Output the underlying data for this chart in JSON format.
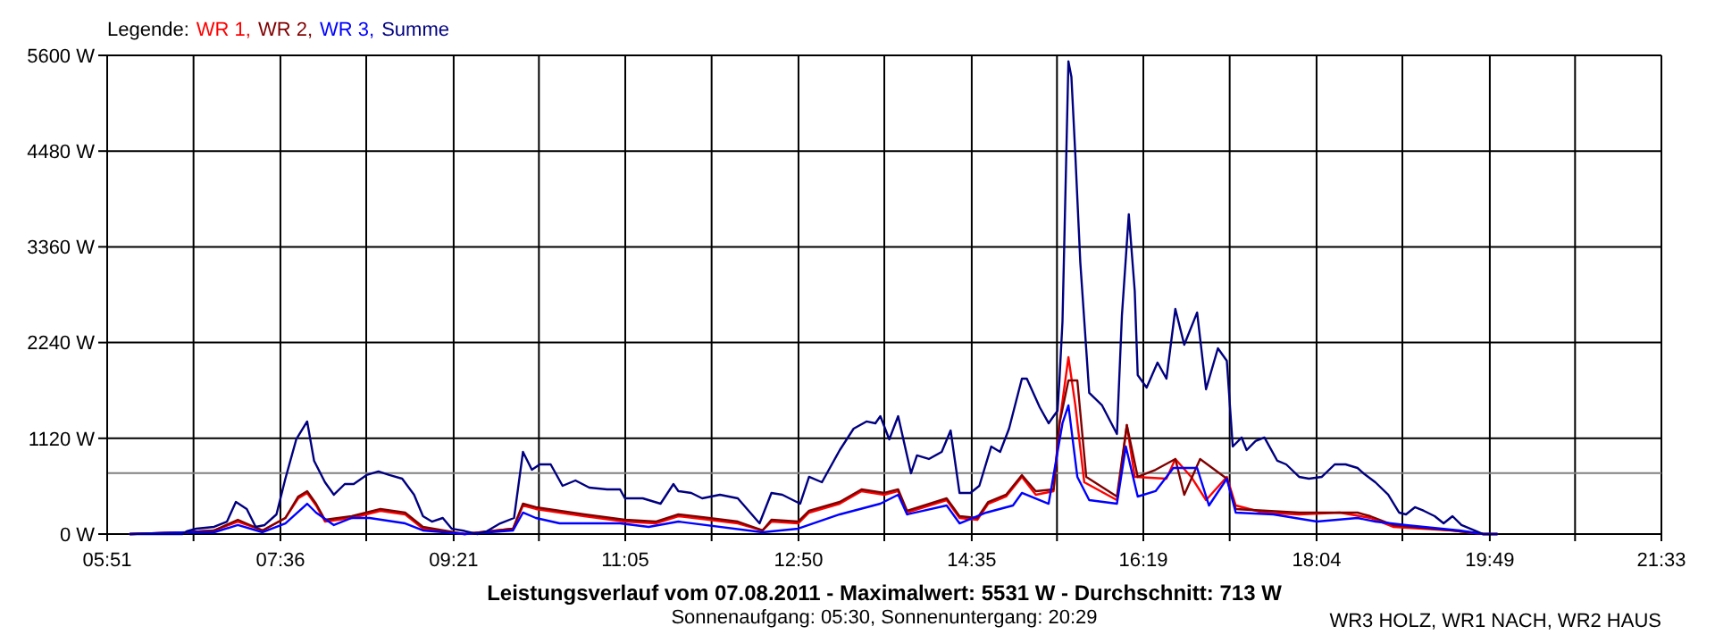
{
  "chart_data": {
    "type": "line",
    "title": "Leistungsverlauf vom 07.08.2011 - Maximalwert: 5531 W - Durchschnitt: 713 W",
    "subtitle": "Sonnenaufgang: 05:30, Sonnenuntergang: 20:29",
    "annotations": [
      "WR3 HOLZ, WR1 NACH, WR2 HAUS"
    ],
    "legend_title": "Legende:",
    "legend": "top left",
    "grid": true,
    "line_style": "solid",
    "xlim": [
      5.85,
      21.55
    ],
    "xticks": [
      {
        "value": 5.85,
        "label": "05:51"
      },
      {
        "value": 6.7222,
        "label": null
      },
      {
        "value": 7.6,
        "label": "07:36"
      },
      {
        "value": 8.4667,
        "label": null
      },
      {
        "value": 9.35,
        "label": "09:21"
      },
      {
        "value": 10.2111,
        "label": null
      },
      {
        "value": 11.0833,
        "label": "11:05"
      },
      {
        "value": 11.9556,
        "label": null
      },
      {
        "value": 12.8333,
        "label": "12:50"
      },
      {
        "value": 13.7,
        "label": null
      },
      {
        "value": 14.5833,
        "label": "14:35"
      },
      {
        "value": 15.4444,
        "label": null
      },
      {
        "value": 16.3167,
        "label": "16:19"
      },
      {
        "value": 17.1889,
        "label": null
      },
      {
        "value": 18.0667,
        "label": "18:04"
      },
      {
        "value": 18.9333,
        "label": null
      },
      {
        "value": 19.8167,
        "label": "19:49"
      },
      {
        "value": 20.6778,
        "label": null
      },
      {
        "value": 21.55,
        "label": "21:33"
      }
    ],
    "ylim": [
      0,
      5600
    ],
    "yticks": [
      {
        "value": 0,
        "label": "0 W"
      },
      {
        "value": 1120,
        "label": "1120 W"
      },
      {
        "value": 2240,
        "label": "2240 W"
      },
      {
        "value": 3360,
        "label": "3360 W"
      },
      {
        "value": 4480,
        "label": "4480 W"
      },
      {
        "value": 5600,
        "label": "5600 W"
      }
    ],
    "ref_lines": [
      {
        "axis": "y",
        "value": 713,
        "color": "#808080"
      }
    ],
    "series": [
      {
        "name": "WR 1,",
        "color": "#ff0000",
        "x": [
          6.08,
          6.66,
          6.93,
          7.17,
          7.42,
          7.65,
          7.78,
          7.87,
          7.96,
          8.05,
          8.32,
          8.61,
          8.86,
          9.04,
          9.46,
          9.95,
          10.05,
          10.18,
          10.67,
          11.08,
          11.39,
          11.62,
          11.93,
          12.22,
          12.47,
          12.56,
          12.83,
          12.94,
          13.25,
          13.47,
          13.7,
          13.84,
          13.93,
          14.33,
          14.46,
          14.64,
          14.75,
          14.93,
          15.09,
          15.23,
          15.41,
          15.47,
          15.56,
          15.63,
          15.72,
          16.05,
          16.1,
          16.15,
          16.23,
          16.55,
          16.64,
          16.8,
          16.95,
          17.16,
          17.25,
          17.53,
          17.89,
          18.3,
          18.61,
          18.84,
          19.44,
          19.75,
          19.89
        ],
        "values": [
          0,
          21,
          42,
          146,
          42,
          188,
          418,
          481,
          334,
          146,
          188,
          272,
          230,
          63,
          0,
          63,
          334,
          293,
          209,
          146,
          125,
          209,
          167,
          125,
          42,
          146,
          125,
          251,
          355,
          502,
          460,
          502,
          251,
          397,
          188,
          167,
          355,
          439,
          669,
          460,
          502,
          1296,
          2069,
          1505,
          606,
          397,
          818,
          1275,
          669,
          648,
          878,
          669,
          397,
          669,
          334,
          251,
          230,
          251,
          188,
          84,
          42,
          0,
          0
        ]
      },
      {
        "name": "WR 2,",
        "color": "#800000",
        "x": [
          6.08,
          6.66,
          6.93,
          7.17,
          7.42,
          7.65,
          7.78,
          7.87,
          7.96,
          8.05,
          8.32,
          8.61,
          8.86,
          9.04,
          9.46,
          9.95,
          10.05,
          10.18,
          10.67,
          11.08,
          11.39,
          11.62,
          11.93,
          12.22,
          12.47,
          12.56,
          12.83,
          12.94,
          13.25,
          13.47,
          13.7,
          13.84,
          13.93,
          14.33,
          14.46,
          14.64,
          14.75,
          14.93,
          15.09,
          15.23,
          15.41,
          15.47,
          15.56,
          15.65,
          15.74,
          16.05,
          16.15,
          16.26,
          16.44,
          16.64,
          16.73,
          16.89,
          17.16,
          17.25,
          17.89,
          18.48,
          18.61,
          18.84,
          19.44,
          19.75,
          19.89
        ],
        "values": [
          0,
          21,
          42,
          167,
          42,
          188,
          439,
          502,
          355,
          167,
          209,
          293,
          251,
          84,
          0,
          63,
          355,
          314,
          230,
          167,
          146,
          230,
          188,
          146,
          42,
          167,
          146,
          272,
          376,
          523,
          481,
          523,
          272,
          418,
          209,
          188,
          376,
          460,
          690,
          502,
          523,
          1296,
          1797,
          1797,
          669,
          439,
          1275,
          669,
          752,
          878,
          460,
          878,
          648,
          293,
          251,
          251,
          209,
          105,
          42,
          0,
          0
        ]
      },
      {
        "name": "WR 3,",
        "color": "#0000ff",
        "x": [
          6.08,
          6.66,
          6.93,
          7.17,
          7.42,
          7.65,
          7.87,
          7.96,
          8.14,
          8.32,
          8.5,
          8.86,
          9.04,
          9.46,
          9.95,
          10.05,
          10.18,
          10.42,
          11.03,
          11.32,
          11.62,
          12.47,
          12.83,
          13.25,
          13.66,
          13.84,
          13.93,
          14.33,
          14.46,
          14.73,
          15.0,
          15.09,
          15.36,
          15.5,
          15.56,
          15.65,
          15.77,
          16.05,
          16.14,
          16.26,
          16.44,
          16.62,
          16.86,
          16.98,
          17.16,
          17.25,
          17.63,
          18.07,
          18.48,
          18.66,
          18.97,
          19.51,
          19.75,
          19.89
        ],
        "values": [
          0,
          21,
          21,
          105,
          21,
          125,
          355,
          251,
          105,
          188,
          188,
          125,
          42,
          0,
          42,
          251,
          188,
          125,
          125,
          84,
          146,
          21,
          63,
          230,
          355,
          460,
          230,
          334,
          125,
          251,
          334,
          481,
          355,
          1296,
          1505,
          669,
          397,
          355,
          1024,
          439,
          502,
          773,
          773,
          334,
          648,
          251,
          230,
          146,
          188,
          146,
          105,
          42,
          0,
          0
        ]
      },
      {
        "name": "Summe",
        "color": "#000080",
        "x": [
          6.08,
          6.61,
          6.66,
          6.75,
          6.93,
          7.06,
          7.15,
          7.26,
          7.35,
          7.44,
          7.56,
          7.65,
          7.76,
          7.87,
          7.94,
          8.05,
          8.14,
          8.25,
          8.34,
          8.47,
          8.59,
          8.7,
          8.83,
          8.95,
          9.04,
          9.13,
          9.24,
          9.33,
          9.46,
          9.59,
          9.69,
          9.82,
          9.96,
          10.05,
          10.14,
          10.22,
          10.33,
          10.45,
          10.58,
          10.72,
          10.9,
          11.03,
          11.08,
          11.26,
          11.44,
          11.57,
          11.62,
          11.75,
          11.86,
          12.04,
          12.22,
          12.44,
          12.56,
          12.67,
          12.85,
          12.94,
          13.07,
          13.25,
          13.39,
          13.52,
          13.61,
          13.66,
          13.75,
          13.84,
          13.97,
          14.03,
          14.15,
          14.28,
          14.37,
          14.46,
          14.57,
          14.66,
          14.78,
          14.87,
          14.96,
          15.09,
          15.14,
          15.27,
          15.36,
          15.41,
          15.45,
          15.47,
          15.5,
          15.54,
          15.56,
          15.59,
          15.63,
          15.68,
          15.77,
          15.9,
          16.05,
          16.1,
          16.17,
          16.23,
          16.26,
          16.35,
          16.46,
          16.55,
          16.64,
          16.73,
          16.86,
          16.95,
          17.07,
          17.16,
          17.22,
          17.31,
          17.36,
          17.45,
          17.54,
          17.67,
          17.76,
          17.89,
          17.99,
          18.12,
          18.25,
          18.36,
          18.48,
          18.54,
          18.66,
          18.79,
          18.9,
          18.97,
          19.06,
          19.15,
          19.26,
          19.35,
          19.44,
          19.53,
          19.66,
          19.75,
          19.89
        ],
        "values": [
          0,
          0,
          36,
          63,
          84,
          146,
          376,
          293,
          84,
          105,
          230,
          648,
          1108,
          1317,
          857,
          606,
          460,
          585,
          585,
          690,
          732,
          690,
          648,
          460,
          209,
          146,
          188,
          63,
          36,
          0,
          36,
          125,
          188,
          961,
          752,
          815,
          815,
          564,
          627,
          543,
          523,
          523,
          418,
          418,
          355,
          585,
          502,
          481,
          418,
          460,
          418,
          125,
          481,
          460,
          355,
          669,
          606,
          982,
          1233,
          1317,
          1296,
          1379,
          1108,
          1379,
          711,
          920,
          878,
          961,
          1212,
          481,
          481,
          564,
          1024,
          961,
          1233,
          1818,
          1818,
          1484,
          1296,
          1379,
          1442,
          1818,
          2487,
          4514,
          5531,
          5350,
          4431,
          3177,
          1651,
          1505,
          1170,
          2550,
          3741,
          2842,
          1860,
          1714,
          2006,
          1818,
          2633,
          2215,
          2592,
          1693,
          2173,
          2027,
          1024,
          1129,
          982,
          1087,
          1129,
          857,
          815,
          669,
          648,
          669,
          815,
          815,
          773,
          711,
          606,
          460,
          251,
          230,
          314,
          272,
          209,
          125,
          209,
          105,
          42,
          0,
          0
        ]
      }
    ]
  }
}
